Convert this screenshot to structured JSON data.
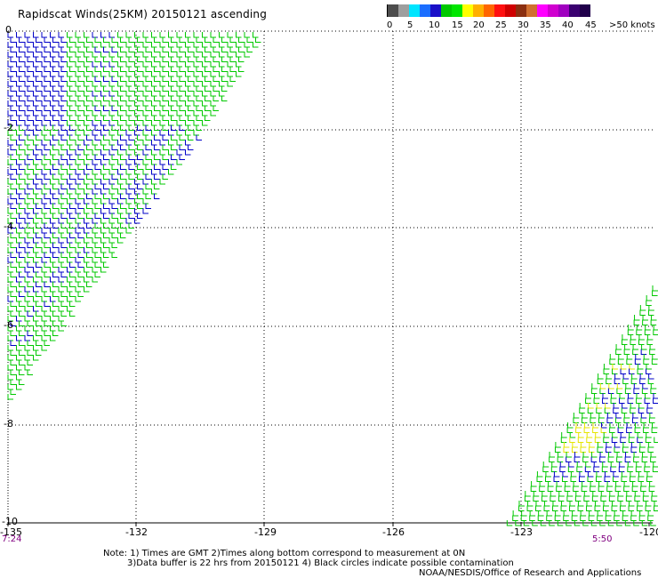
{
  "title": "Rapidscat Winds(25KM) 20150121 ascending",
  "legend": {
    "colors": [
      "#4d4d4d",
      "#9e9e9e",
      "#00e5ff",
      "#1b6eff",
      "#1a10c8",
      "#00c800",
      "#00e600",
      "#ffff00",
      "#ffb000",
      "#ff6600",
      "#ff1010",
      "#d00000",
      "#8b2f10",
      "#d07030",
      "#ff00ff",
      "#d000d0",
      "#a000c0",
      "#3a0070",
      "#20004a"
    ],
    "labels": [
      "0",
      "5",
      "10",
      "15",
      "20",
      "25",
      "30",
      "35",
      "40",
      "45",
      ">50 knots"
    ]
  },
  "axes": {
    "lon_ticks": [
      "-135",
      "-132",
      "-129",
      "-126",
      "-123",
      "-120"
    ],
    "lat_ticks": [
      "0",
      "-2",
      "-4",
      "-6",
      "-8",
      "-10"
    ]
  },
  "times": {
    "left": "7:24",
    "right": "5:50"
  },
  "notes": {
    "line1": "Note: 1) Times are GMT 2)Times along bottom correspond to measurement at 0N",
    "line2": "3)Data buffer is 22 hrs from 20150121 4) Black circles indicate possible contamination",
    "line3": "NOAA/NESDIS/Office of Research and Applications"
  },
  "colors": {
    "blue_barb": "#0000c8",
    "green_barb": "#00c800",
    "yellow_barb": "#e6e600",
    "grid": "#000000",
    "time_text": "#800080"
  }
}
